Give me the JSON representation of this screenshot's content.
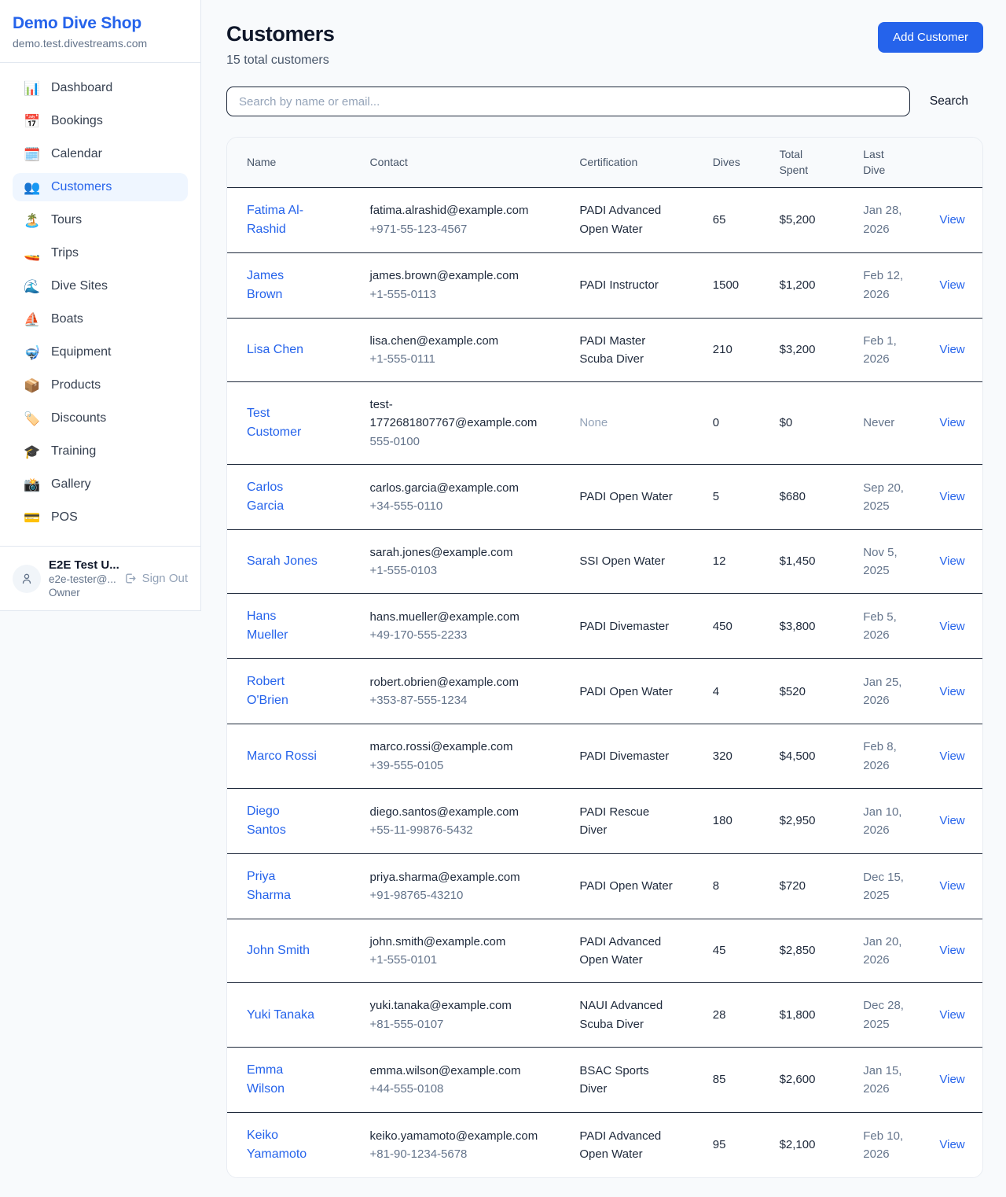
{
  "colors": {
    "accent_blue": "#2563eb",
    "active_nav_bg": "#eff6ff",
    "page_bg": "#f8fafc",
    "dark_divider": "#1e293b",
    "muted_text": "#64748b"
  },
  "sidebar": {
    "shop_name": "Demo Dive Shop",
    "domain": "demo.test.divestreams.com",
    "nav": [
      {
        "icon_name": "dashboard-icon",
        "emoji": "📊",
        "label": "Dashboard",
        "active": false
      },
      {
        "icon_name": "bookings-icon",
        "emoji": "📅",
        "label": "Bookings",
        "active": false
      },
      {
        "icon_name": "calendar-icon",
        "emoji": "🗓️",
        "label": "Calendar",
        "active": false
      },
      {
        "icon_name": "customers-icon",
        "emoji": "👥",
        "label": "Customers",
        "active": true
      },
      {
        "icon_name": "tours-icon",
        "emoji": "🏝️",
        "label": "Tours",
        "active": false
      },
      {
        "icon_name": "trips-icon",
        "emoji": "🚤",
        "label": "Trips",
        "active": false
      },
      {
        "icon_name": "dive-sites-icon",
        "emoji": "🌊",
        "label": "Dive Sites",
        "active": false
      },
      {
        "icon_name": "boats-icon",
        "emoji": "⛵",
        "label": "Boats",
        "active": false
      },
      {
        "icon_name": "equipment-icon",
        "emoji": "🤿",
        "label": "Equipment",
        "active": false
      },
      {
        "icon_name": "products-icon",
        "emoji": "📦",
        "label": "Products",
        "active": false
      },
      {
        "icon_name": "discounts-icon",
        "emoji": "🏷️",
        "label": "Discounts",
        "active": false
      },
      {
        "icon_name": "training-icon",
        "emoji": "🎓",
        "label": "Training",
        "active": false
      },
      {
        "icon_name": "gallery-icon",
        "emoji": "📸",
        "label": "Gallery",
        "active": false
      },
      {
        "icon_name": "pos-icon",
        "emoji": "💳",
        "label": "POS",
        "active": false
      }
    ],
    "user": {
      "name": "E2E Test U...",
      "email": "e2e-tester@...",
      "role": "Owner",
      "sign_out_label": "Sign Out"
    }
  },
  "header": {
    "title": "Customers",
    "subtitle": "15 total customers",
    "add_button_label": "Add Customer"
  },
  "search": {
    "placeholder": "Search by name or email...",
    "button_label": "Search"
  },
  "table": {
    "columns": [
      "Name",
      "Contact",
      "Certification",
      "Dives",
      "Total Spent",
      "Last Dive",
      ""
    ],
    "rows": [
      {
        "name": "Fatima Al-Rashid",
        "email": "fatima.alrashid@example.com",
        "phone": "+971-55-123-4567",
        "certification": "PADI Advanced Open Water",
        "dives": "65",
        "total_spent": "$5,200",
        "last_dive": "Jan 28, 2026",
        "action": "View"
      },
      {
        "name": "James Brown",
        "email": "james.brown@example.com",
        "phone": "+1-555-0113",
        "certification": "PADI Instructor",
        "dives": "1500",
        "total_spent": "$1,200",
        "last_dive": "Feb 12, 2026",
        "action": "View"
      },
      {
        "name": "Lisa Chen",
        "email": "lisa.chen@example.com",
        "phone": "+1-555-0111",
        "certification": "PADI Master Scuba Diver",
        "dives": "210",
        "total_spent": "$3,200",
        "last_dive": "Feb 1, 2026",
        "action": "View"
      },
      {
        "name": "Test Customer",
        "email": "test-1772681807767@example.com",
        "phone": "555-0100",
        "certification": "None",
        "dives": "0",
        "total_spent": "$0",
        "last_dive": "Never",
        "action": "View"
      },
      {
        "name": "Carlos Garcia",
        "email": "carlos.garcia@example.com",
        "phone": "+34-555-0110",
        "certification": "PADI Open Water",
        "dives": "5",
        "total_spent": "$680",
        "last_dive": "Sep 20, 2025",
        "action": "View"
      },
      {
        "name": "Sarah Jones",
        "email": "sarah.jones@example.com",
        "phone": "+1-555-0103",
        "certification": "SSI Open Water",
        "dives": "12",
        "total_spent": "$1,450",
        "last_dive": "Nov 5, 2025",
        "action": "View"
      },
      {
        "name": "Hans Mueller",
        "email": "hans.mueller@example.com",
        "phone": "+49-170-555-2233",
        "certification": "PADI Divemaster",
        "dives": "450",
        "total_spent": "$3,800",
        "last_dive": "Feb 5, 2026",
        "action": "View"
      },
      {
        "name": "Robert O'Brien",
        "email": "robert.obrien@example.com",
        "phone": "+353-87-555-1234",
        "certification": "PADI Open Water",
        "dives": "4",
        "total_spent": "$520",
        "last_dive": "Jan 25, 2026",
        "action": "View"
      },
      {
        "name": "Marco Rossi",
        "email": "marco.rossi@example.com",
        "phone": "+39-555-0105",
        "certification": "PADI Divemaster",
        "dives": "320",
        "total_spent": "$4,500",
        "last_dive": "Feb 8, 2026",
        "action": "View"
      },
      {
        "name": "Diego Santos",
        "email": "diego.santos@example.com",
        "phone": "+55-11-99876-5432",
        "certification": "PADI Rescue Diver",
        "dives": "180",
        "total_spent": "$2,950",
        "last_dive": "Jan 10, 2026",
        "action": "View"
      },
      {
        "name": "Priya Sharma",
        "email": "priya.sharma@example.com",
        "phone": "+91-98765-43210",
        "certification": "PADI Open Water",
        "dives": "8",
        "total_spent": "$720",
        "last_dive": "Dec 15, 2025",
        "action": "View"
      },
      {
        "name": "John Smith",
        "email": "john.smith@example.com",
        "phone": "+1-555-0101",
        "certification": "PADI Advanced Open Water",
        "dives": "45",
        "total_spent": "$2,850",
        "last_dive": "Jan 20, 2026",
        "action": "View"
      },
      {
        "name": "Yuki Tanaka",
        "email": "yuki.tanaka@example.com",
        "phone": "+81-555-0107",
        "certification": "NAUI Advanced Scuba Diver",
        "dives": "28",
        "total_spent": "$1,800",
        "last_dive": "Dec 28, 2025",
        "action": "View"
      },
      {
        "name": "Emma Wilson",
        "email": "emma.wilson@example.com",
        "phone": "+44-555-0108",
        "certification": "BSAC Sports Diver",
        "dives": "85",
        "total_spent": "$2,600",
        "last_dive": "Jan 15, 2026",
        "action": "View"
      },
      {
        "name": "Keiko Yamamoto",
        "email": "keiko.yamamoto@example.com",
        "phone": "+81-90-1234-5678",
        "certification": "PADI Advanced Open Water",
        "dives": "95",
        "total_spent": "$2,100",
        "last_dive": "Feb 10, 2026",
        "action": "View"
      }
    ]
  }
}
